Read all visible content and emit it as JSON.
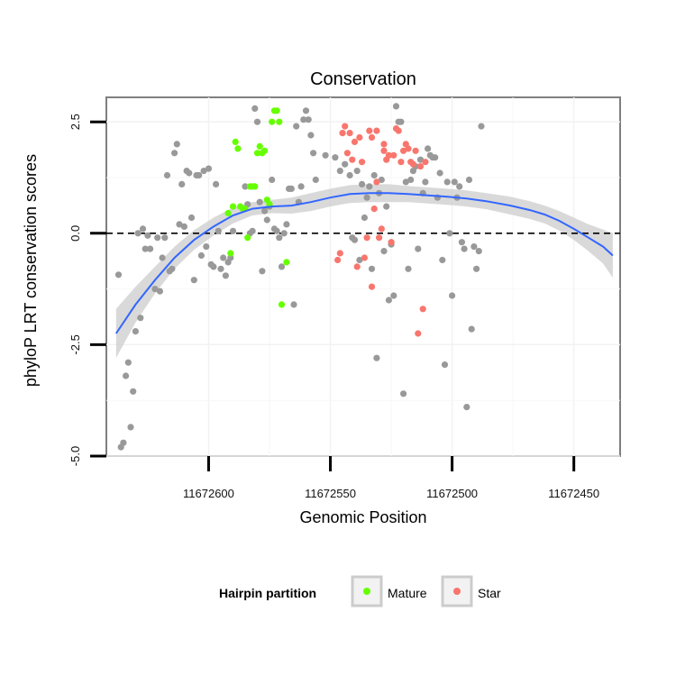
{
  "chart_data": {
    "type": "scatter",
    "title": "Conservation",
    "xlabel": "Genomic Position",
    "ylabel": "phyloP LRT conservation scores",
    "x_reversed": true,
    "xlim": [
      11672642,
      11672431
    ],
    "ylim": [
      -5.0,
      3.05
    ],
    "x_ticks": [
      11672600,
      11672550,
      11672500,
      11672450
    ],
    "x_tick_labels": [
      "11672600",
      "11672550",
      "11672500",
      "11672450"
    ],
    "y_ticks": [
      -5.0,
      -2.5,
      0.0,
      2.5
    ],
    "y_tick_labels": [
      "-5.0",
      "-2.5",
      "0.0",
      "2.5"
    ],
    "grid": true,
    "reference_line": {
      "y": 0,
      "style": "dashed"
    },
    "legend": {
      "title": "Hairpin partition",
      "placement": "bottom",
      "entries": [
        {
          "label": "Mature",
          "color": "#66ff00"
        },
        {
          "label": "Star",
          "color": "#f8766d"
        }
      ]
    },
    "colors": {
      "other": "#999999",
      "Mature": "#66ff00",
      "Star": "#f8766d",
      "smooth": "#3366ff",
      "ribbon": "#cccccc"
    },
    "series": [
      {
        "group": "other",
        "points": [
          [
            11672637,
            -0.93
          ],
          [
            11672636,
            -4.8
          ],
          [
            11672635,
            -4.7
          ],
          [
            11672634,
            -3.2
          ],
          [
            11672633,
            -2.9
          ],
          [
            11672632,
            -4.35
          ],
          [
            11672631,
            -3.55
          ],
          [
            11672630,
            -2.2
          ],
          [
            11672629,
            0.0
          ],
          [
            11672628,
            -1.9
          ],
          [
            11672627,
            0.1
          ],
          [
            11672626,
            -0.35
          ],
          [
            11672625,
            -0.05
          ],
          [
            11672624,
            -0.35
          ],
          [
            11672622,
            -1.25
          ],
          [
            11672621,
            -0.1
          ],
          [
            11672620,
            -1.3
          ],
          [
            11672619,
            -0.55
          ],
          [
            11672618,
            -0.1
          ],
          [
            11672617,
            1.3
          ],
          [
            11672616,
            -0.85
          ],
          [
            11672615,
            -0.8
          ],
          [
            11672614,
            1.8
          ],
          [
            11672613,
            2.0
          ],
          [
            11672612,
            0.2
          ],
          [
            11672611,
            1.1
          ],
          [
            11672610,
            0.15
          ],
          [
            11672609,
            1.4
          ],
          [
            11672608,
            1.35
          ],
          [
            11672607,
            0.35
          ],
          [
            11672606,
            -1.05
          ],
          [
            11672605,
            1.3
          ],
          [
            11672604,
            1.3
          ],
          [
            11672603,
            -0.5
          ],
          [
            11672602,
            1.4
          ],
          [
            11672601,
            -0.3
          ],
          [
            11672600,
            1.45
          ],
          [
            11672599,
            -0.7
          ],
          [
            11672598,
            -0.75
          ],
          [
            11672597,
            1.1
          ],
          [
            11672596,
            0.05
          ],
          [
            11672595,
            -0.8
          ],
          [
            11672594,
            -0.55
          ],
          [
            11672593,
            -0.95
          ],
          [
            11672592,
            -0.65
          ],
          [
            11672591,
            -0.55
          ],
          [
            11672590,
            0.05
          ],
          [
            11672585,
            1.05
          ],
          [
            11672584,
            0.65
          ],
          [
            11672583,
            0.0
          ],
          [
            11672582,
            0.05
          ],
          [
            11672581,
            2.8
          ],
          [
            11672580,
            2.5
          ],
          [
            11672579,
            0.7
          ],
          [
            11672578,
            -0.85
          ],
          [
            11672577,
            0.5
          ],
          [
            11672576,
            0.3
          ],
          [
            11672575,
            0.6
          ],
          [
            11672574,
            1.2
          ],
          [
            11672573,
            0.1
          ],
          [
            11672572,
            0.05
          ],
          [
            11672571,
            -0.1
          ],
          [
            11672570,
            -0.75
          ],
          [
            11672569,
            0.0
          ],
          [
            11672568,
            0.2
          ],
          [
            11672567,
            1.0
          ],
          [
            11672566,
            1.0
          ],
          [
            11672565,
            -1.6
          ],
          [
            11672564,
            2.4
          ],
          [
            11672563,
            0.7
          ],
          [
            11672562,
            1.05
          ],
          [
            11672561,
            2.55
          ],
          [
            11672560,
            2.75
          ],
          [
            11672559,
            2.55
          ],
          [
            11672558,
            2.2
          ],
          [
            11672557,
            1.8
          ],
          [
            11672556,
            1.2
          ],
          [
            11672552,
            1.75
          ],
          [
            11672548,
            1.7
          ],
          [
            11672546,
            1.4
          ],
          [
            11672544,
            1.55
          ],
          [
            11672542,
            1.3
          ],
          [
            11672541,
            -0.1
          ],
          [
            11672540,
            -0.15
          ],
          [
            11672539,
            1.4
          ],
          [
            11672538,
            -0.6
          ],
          [
            11672537,
            1.1
          ],
          [
            11672536,
            0.35
          ],
          [
            11672535,
            0.8
          ],
          [
            11672534,
            1.05
          ],
          [
            11672533,
            -0.8
          ],
          [
            11672532,
            1.3
          ],
          [
            11672531,
            -2.8
          ],
          [
            11672530,
            0.9
          ],
          [
            11672529,
            1.2
          ],
          [
            11672528,
            -0.4
          ],
          [
            11672527,
            0.6
          ],
          [
            11672526,
            -1.5
          ],
          [
            11672525,
            -0.25
          ],
          [
            11672524,
            -1.4
          ],
          [
            11672523,
            2.85
          ],
          [
            11672522,
            2.5
          ],
          [
            11672521,
            2.5
          ],
          [
            11672520,
            -3.6
          ],
          [
            11672519,
            1.15
          ],
          [
            11672518,
            -0.8
          ],
          [
            11672517,
            1.2
          ],
          [
            11672516,
            1.4
          ],
          [
            11672515,
            1.5
          ],
          [
            11672514,
            -0.35
          ],
          [
            11672513,
            1.65
          ],
          [
            11672512,
            0.9
          ],
          [
            11672511,
            1.15
          ],
          [
            11672510,
            1.9
          ],
          [
            11672509,
            1.75
          ],
          [
            11672508,
            1.7
          ],
          [
            11672507,
            1.7
          ],
          [
            11672506,
            0.8
          ],
          [
            11672505,
            1.35
          ],
          [
            11672504,
            -0.6
          ],
          [
            11672503,
            -2.95
          ],
          [
            11672502,
            1.15
          ],
          [
            11672501,
            0.0
          ],
          [
            11672500,
            -1.4
          ],
          [
            11672499,
            1.15
          ],
          [
            11672498,
            0.8
          ],
          [
            11672497,
            1.05
          ],
          [
            11672496,
            -0.2
          ],
          [
            11672495,
            -0.35
          ],
          [
            11672494,
            -3.9
          ],
          [
            11672493,
            1.2
          ],
          [
            11672492,
            -2.15
          ],
          [
            11672491,
            -0.3
          ],
          [
            11672490,
            -0.8
          ],
          [
            11672489,
            -0.4
          ],
          [
            11672488,
            2.4
          ]
        ]
      },
      {
        "group": "Mature",
        "points": [
          [
            11672589,
            2.05
          ],
          [
            11672588,
            1.9
          ],
          [
            11672587,
            0.6
          ],
          [
            11672586,
            0.55
          ],
          [
            11672585,
            0.55
          ],
          [
            11672584,
            -0.1
          ],
          [
            11672583,
            1.05
          ],
          [
            11672582,
            1.05
          ],
          [
            11672581,
            1.05
          ],
          [
            11672580,
            1.8
          ],
          [
            11672579,
            1.95
          ],
          [
            11672578,
            1.8
          ],
          [
            11672577,
            1.85
          ],
          [
            11672576,
            0.75
          ],
          [
            11672575,
            0.65
          ],
          [
            11672574,
            2.5
          ],
          [
            11672573,
            2.75
          ],
          [
            11672572,
            2.75
          ],
          [
            11672571,
            2.5
          ],
          [
            11672570,
            -1.6
          ],
          [
            11672592,
            0.45
          ],
          [
            11672591,
            -0.45
          ],
          [
            11672590,
            0.6
          ],
          [
            11672568,
            -0.65
          ]
        ]
      },
      {
        "group": "Star",
        "points": [
          [
            11672545,
            2.25
          ],
          [
            11672544,
            2.4
          ],
          [
            11672543,
            1.8
          ],
          [
            11672542,
            2.25
          ],
          [
            11672541,
            1.65
          ],
          [
            11672540,
            2.05
          ],
          [
            11672539,
            -0.75
          ],
          [
            11672538,
            2.15
          ],
          [
            11672537,
            1.6
          ],
          [
            11672536,
            -0.55
          ],
          [
            11672535,
            -0.1
          ],
          [
            11672534,
            2.3
          ],
          [
            11672533,
            2.15
          ],
          [
            11672532,
            0.55
          ],
          [
            11672531,
            1.15
          ],
          [
            11672530,
            -0.1
          ],
          [
            11672529,
            0.1
          ],
          [
            11672528,
            1.85
          ],
          [
            11672527,
            1.65
          ],
          [
            11672526,
            1.75
          ],
          [
            11672525,
            -0.2
          ],
          [
            11672524,
            1.75
          ],
          [
            11672523,
            2.35
          ],
          [
            11672522,
            2.3
          ],
          [
            11672521,
            1.6
          ],
          [
            11672520,
            1.85
          ],
          [
            11672519,
            2.0
          ],
          [
            11672518,
            1.9
          ],
          [
            11672517,
            1.6
          ],
          [
            11672516,
            1.55
          ],
          [
            11672515,
            1.85
          ],
          [
            11672514,
            -2.25
          ],
          [
            11672513,
            1.5
          ],
          [
            11672512,
            -1.7
          ],
          [
            11672511,
            1.6
          ],
          [
            11672547,
            -0.6
          ],
          [
            11672546,
            -0.45
          ],
          [
            11672533,
            -1.2
          ],
          [
            11672528,
            2.0
          ],
          [
            11672531,
            2.3
          ]
        ]
      }
    ],
    "smooth": {
      "x": [
        11672638,
        11672630,
        11672622,
        11672614,
        11672606,
        11672598,
        11672590,
        11672582,
        11672574,
        11672566,
        11672558,
        11672550,
        11672542,
        11672534,
        11672526,
        11672518,
        11672510,
        11672502,
        11672494,
        11672486,
        11672476,
        11672468,
        11672462,
        11672456,
        11672450,
        11672444,
        11672438,
        11672434
      ],
      "y": [
        -2.25,
        -1.6,
        -1.05,
        -0.55,
        -0.15,
        0.15,
        0.4,
        0.55,
        0.6,
        0.62,
        0.7,
        0.8,
        0.88,
        0.9,
        0.9,
        0.88,
        0.85,
        0.82,
        0.78,
        0.72,
        0.62,
        0.52,
        0.42,
        0.28,
        0.1,
        -0.1,
        -0.3,
        -0.5
      ],
      "band": [
        0.55,
        0.4,
        0.3,
        0.25,
        0.22,
        0.2,
        0.18,
        0.15,
        0.15,
        0.18,
        0.2,
        0.2,
        0.2,
        0.2,
        0.2,
        0.18,
        0.18,
        0.18,
        0.18,
        0.18,
        0.2,
        0.2,
        0.2,
        0.22,
        0.25,
        0.3,
        0.38,
        0.5
      ]
    }
  }
}
